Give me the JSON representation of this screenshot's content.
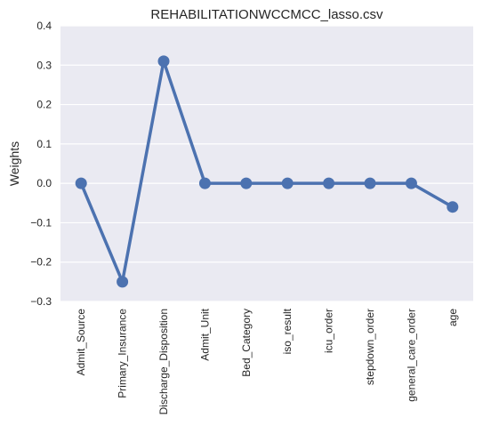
{
  "chart_data": {
    "type": "line",
    "title": "REHABILITATIONWCCMCC_lasso.csv",
    "xlabel": "",
    "ylabel": "Weights",
    "categories": [
      "Admit_Source",
      "Primary_Insurance",
      "Discharge_Disposition",
      "Admit_Unit",
      "Bed_Category",
      "iso_result",
      "icu_order",
      "stepdown_order",
      "general_care_order",
      "age"
    ],
    "series": [
      {
        "values": [
          0.0,
          -0.25,
          0.31,
          0.0,
          0.0,
          0.0,
          0.0,
          0.0,
          0.0,
          -0.06
        ],
        "color": "#4c72b0"
      }
    ],
    "ylim": [
      -0.3,
      0.4
    ],
    "yticks": [
      -0.3,
      -0.2,
      -0.1,
      0.0,
      0.1,
      0.2,
      0.3,
      0.4
    ],
    "ytick_labels": [
      "−0.3",
      "−0.2",
      "−0.1",
      "0.0",
      "0.1",
      "0.2",
      "0.3",
      "0.4"
    ],
    "grid": true,
    "background": "#eaeaf2",
    "grid_color": "#ffffff"
  }
}
